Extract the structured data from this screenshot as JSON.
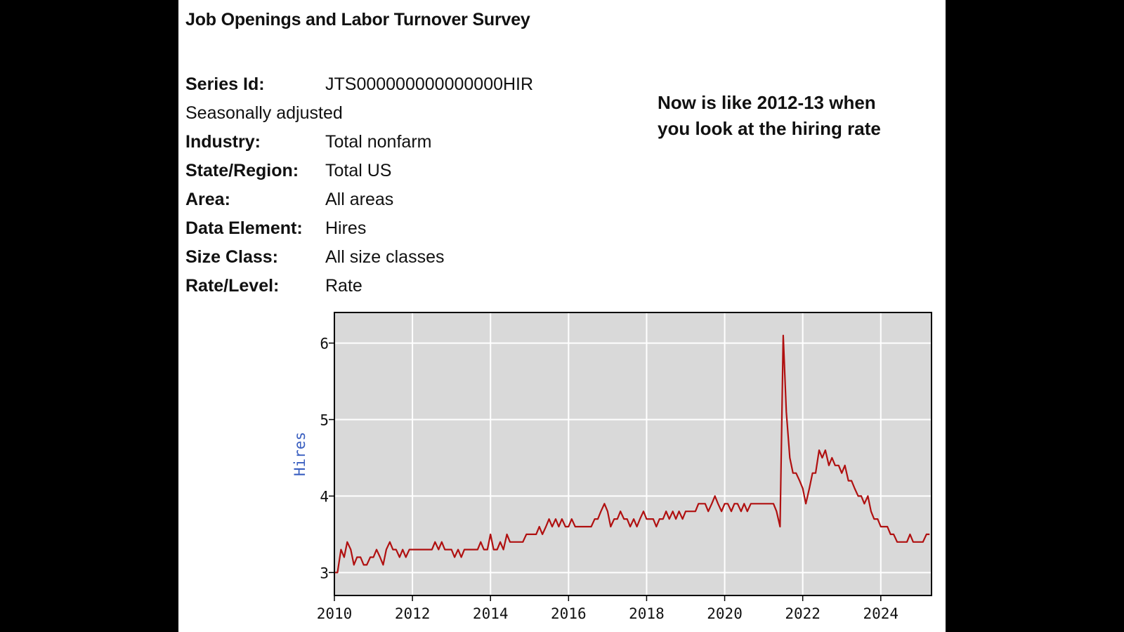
{
  "header": {
    "title": "Job Openings and Labor Turnover Survey"
  },
  "series_info": {
    "series_id_label": "Series Id:",
    "series_id_value": "JTS000000000000000HIR",
    "adjustment": "Seasonally adjusted",
    "rows": [
      {
        "label": "Industry:",
        "value": "Total nonfarm"
      },
      {
        "label": "State/Region:",
        "value": "Total US"
      },
      {
        "label": "Area:",
        "value": "All areas"
      },
      {
        "label": "Data Element:",
        "value": "Hires"
      },
      {
        "label": "Size Class:",
        "value": "All size classes"
      },
      {
        "label": "Rate/Level:",
        "value": "Rate"
      }
    ]
  },
  "annotation": {
    "line1": "Now is like 2012-13 when",
    "line2": "you look at the hiring rate"
  },
  "colors": {
    "background": "#000000",
    "panel": "#ffffff",
    "plot_bg": "#d9d9d9",
    "grid": "#ffffff",
    "line": "#b01010",
    "ylabel": "#3a5fc0"
  },
  "chart_data": {
    "type": "line",
    "title": "",
    "xlabel": "",
    "ylabel": "Hires",
    "xlim": [
      2010,
      2025.3
    ],
    "ylim": [
      2.7,
      6.4
    ],
    "xticks": [
      2010,
      2012,
      2014,
      2016,
      2018,
      2020,
      2022,
      2024
    ],
    "yticks": [
      3,
      4,
      5,
      6
    ],
    "grid": true,
    "series": [
      {
        "values": [
          [
            2010.0,
            3.0
          ],
          [
            2010.08,
            3.0
          ],
          [
            2010.17,
            3.3
          ],
          [
            2010.25,
            3.2
          ],
          [
            2010.33,
            3.4
          ],
          [
            2010.42,
            3.3
          ],
          [
            2010.5,
            3.1
          ],
          [
            2010.58,
            3.2
          ],
          [
            2010.67,
            3.2
          ],
          [
            2010.75,
            3.1
          ],
          [
            2010.83,
            3.1
          ],
          [
            2010.92,
            3.2
          ],
          [
            2011.0,
            3.2
          ],
          [
            2011.08,
            3.3
          ],
          [
            2011.17,
            3.2
          ],
          [
            2011.25,
            3.1
          ],
          [
            2011.33,
            3.3
          ],
          [
            2011.42,
            3.4
          ],
          [
            2011.5,
            3.3
          ],
          [
            2011.58,
            3.3
          ],
          [
            2011.67,
            3.2
          ],
          [
            2011.75,
            3.3
          ],
          [
            2011.83,
            3.2
          ],
          [
            2011.92,
            3.3
          ],
          [
            2012.0,
            3.3
          ],
          [
            2012.08,
            3.3
          ],
          [
            2012.17,
            3.3
          ],
          [
            2012.25,
            3.3
          ],
          [
            2012.33,
            3.3
          ],
          [
            2012.42,
            3.3
          ],
          [
            2012.5,
            3.3
          ],
          [
            2012.58,
            3.4
          ],
          [
            2012.67,
            3.3
          ],
          [
            2012.75,
            3.4
          ],
          [
            2012.83,
            3.3
          ],
          [
            2012.92,
            3.3
          ],
          [
            2013.0,
            3.3
          ],
          [
            2013.08,
            3.2
          ],
          [
            2013.17,
            3.3
          ],
          [
            2013.25,
            3.2
          ],
          [
            2013.33,
            3.3
          ],
          [
            2013.42,
            3.3
          ],
          [
            2013.5,
            3.3
          ],
          [
            2013.58,
            3.3
          ],
          [
            2013.67,
            3.3
          ],
          [
            2013.75,
            3.4
          ],
          [
            2013.83,
            3.3
          ],
          [
            2013.92,
            3.3
          ],
          [
            2014.0,
            3.5
          ],
          [
            2014.08,
            3.3
          ],
          [
            2014.17,
            3.3
          ],
          [
            2014.25,
            3.4
          ],
          [
            2014.33,
            3.3
          ],
          [
            2014.42,
            3.5
          ],
          [
            2014.5,
            3.4
          ],
          [
            2014.58,
            3.4
          ],
          [
            2014.67,
            3.4
          ],
          [
            2014.75,
            3.4
          ],
          [
            2014.83,
            3.4
          ],
          [
            2014.92,
            3.5
          ],
          [
            2015.0,
            3.5
          ],
          [
            2015.08,
            3.5
          ],
          [
            2015.17,
            3.5
          ],
          [
            2015.25,
            3.6
          ],
          [
            2015.33,
            3.5
          ],
          [
            2015.42,
            3.6
          ],
          [
            2015.5,
            3.7
          ],
          [
            2015.58,
            3.6
          ],
          [
            2015.67,
            3.7
          ],
          [
            2015.75,
            3.6
          ],
          [
            2015.83,
            3.7
          ],
          [
            2015.92,
            3.6
          ],
          [
            2016.0,
            3.6
          ],
          [
            2016.08,
            3.7
          ],
          [
            2016.17,
            3.6
          ],
          [
            2016.25,
            3.6
          ],
          [
            2016.33,
            3.6
          ],
          [
            2016.42,
            3.6
          ],
          [
            2016.5,
            3.6
          ],
          [
            2016.58,
            3.6
          ],
          [
            2016.67,
            3.7
          ],
          [
            2016.75,
            3.7
          ],
          [
            2016.83,
            3.8
          ],
          [
            2016.92,
            3.9
          ],
          [
            2017.0,
            3.8
          ],
          [
            2017.08,
            3.6
          ],
          [
            2017.17,
            3.7
          ],
          [
            2017.25,
            3.7
          ],
          [
            2017.33,
            3.8
          ],
          [
            2017.42,
            3.7
          ],
          [
            2017.5,
            3.7
          ],
          [
            2017.58,
            3.6
          ],
          [
            2017.67,
            3.7
          ],
          [
            2017.75,
            3.6
          ],
          [
            2017.83,
            3.7
          ],
          [
            2017.92,
            3.8
          ],
          [
            2018.0,
            3.7
          ],
          [
            2018.08,
            3.7
          ],
          [
            2018.17,
            3.7
          ],
          [
            2018.25,
            3.6
          ],
          [
            2018.33,
            3.7
          ],
          [
            2018.42,
            3.7
          ],
          [
            2018.5,
            3.8
          ],
          [
            2018.58,
            3.7
          ],
          [
            2018.67,
            3.8
          ],
          [
            2018.75,
            3.7
          ],
          [
            2018.83,
            3.8
          ],
          [
            2018.92,
            3.7
          ],
          [
            2019.0,
            3.8
          ],
          [
            2019.08,
            3.8
          ],
          [
            2019.17,
            3.8
          ],
          [
            2019.25,
            3.8
          ],
          [
            2019.33,
            3.9
          ],
          [
            2019.42,
            3.9
          ],
          [
            2019.5,
            3.9
          ],
          [
            2019.58,
            3.8
          ],
          [
            2019.67,
            3.9
          ],
          [
            2019.75,
            4.0
          ],
          [
            2019.83,
            3.9
          ],
          [
            2019.92,
            3.8
          ],
          [
            2020.0,
            3.9
          ],
          [
            2020.08,
            3.9
          ],
          [
            2020.17,
            3.8
          ],
          [
            2020.25,
            3.9
          ],
          [
            2020.33,
            3.9
          ],
          [
            2020.42,
            3.8
          ],
          [
            2020.5,
            3.9
          ],
          [
            2020.58,
            3.8
          ],
          [
            2020.67,
            3.9
          ],
          [
            2020.75,
            3.9
          ],
          [
            2020.83,
            3.9
          ],
          [
            2020.92,
            3.9
          ],
          [
            2021.0,
            3.9
          ],
          [
            2021.08,
            3.9
          ],
          [
            2021.17,
            3.9
          ],
          [
            2021.25,
            3.9
          ],
          [
            2021.33,
            3.8
          ],
          [
            2021.42,
            3.6
          ],
          [
            2021.5,
            6.1
          ],
          [
            2021.58,
            5.1
          ],
          [
            2021.67,
            4.5
          ],
          [
            2021.75,
            4.3
          ],
          [
            2021.83,
            4.3
          ],
          [
            2021.92,
            4.2
          ],
          [
            2022.0,
            4.1
          ],
          [
            2022.08,
            3.9
          ],
          [
            2022.17,
            4.1
          ],
          [
            2022.25,
            4.3
          ],
          [
            2022.33,
            4.3
          ],
          [
            2022.42,
            4.6
          ],
          [
            2022.5,
            4.5
          ],
          [
            2022.58,
            4.6
          ],
          [
            2022.67,
            4.4
          ],
          [
            2022.75,
            4.5
          ],
          [
            2022.83,
            4.4
          ],
          [
            2022.92,
            4.4
          ],
          [
            2023.0,
            4.3
          ],
          [
            2023.08,
            4.4
          ],
          [
            2023.17,
            4.2
          ],
          [
            2023.25,
            4.2
          ],
          [
            2023.33,
            4.1
          ],
          [
            2023.42,
            4.0
          ],
          [
            2023.5,
            4.0
          ],
          [
            2023.58,
            3.9
          ],
          [
            2023.67,
            4.0
          ],
          [
            2023.75,
            3.8
          ],
          [
            2023.83,
            3.7
          ],
          [
            2023.92,
            3.7
          ],
          [
            2024.0,
            3.6
          ],
          [
            2024.08,
            3.6
          ],
          [
            2024.17,
            3.6
          ],
          [
            2024.25,
            3.5
          ],
          [
            2024.33,
            3.5
          ],
          [
            2024.42,
            3.4
          ],
          [
            2024.5,
            3.4
          ],
          [
            2024.58,
            3.4
          ],
          [
            2024.67,
            3.4
          ],
          [
            2024.75,
            3.5
          ],
          [
            2024.83,
            3.4
          ],
          [
            2024.92,
            3.4
          ],
          [
            2025.0,
            3.4
          ],
          [
            2025.08,
            3.4
          ],
          [
            2025.17,
            3.5
          ],
          [
            2025.25,
            3.5
          ]
        ]
      }
    ]
  }
}
